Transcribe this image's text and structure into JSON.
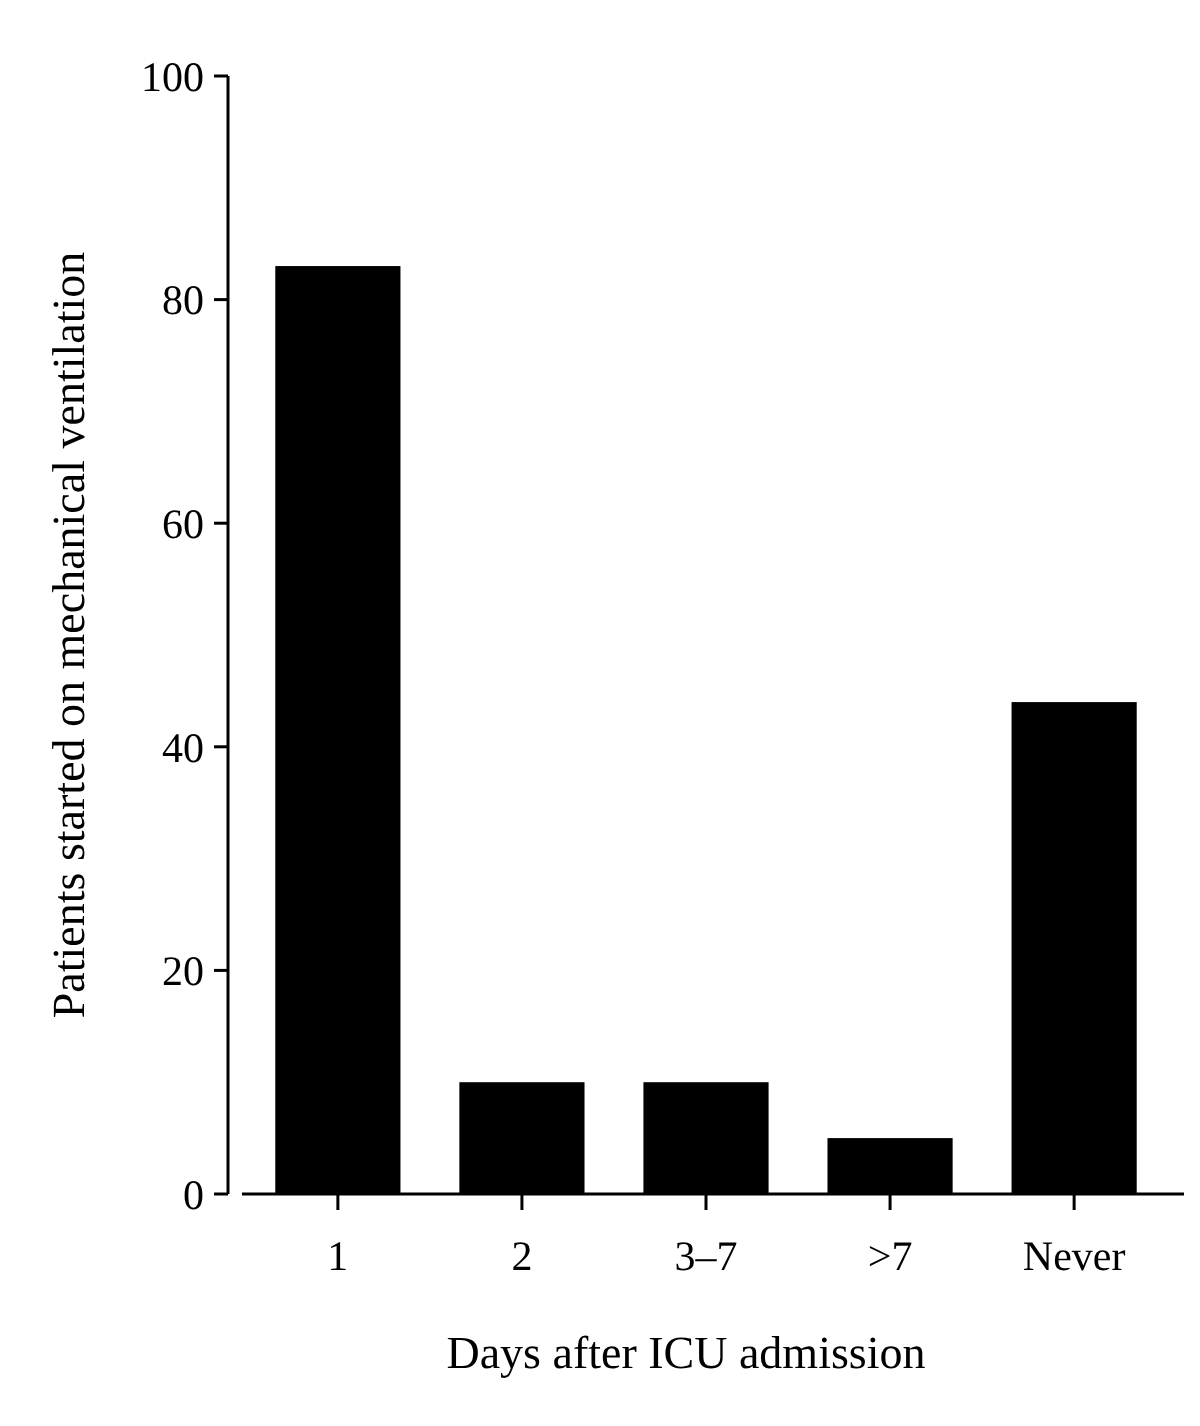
{
  "chart_data": {
    "type": "bar",
    "xlabel": "Days after ICU admission",
    "ylabel": "Patients started on mechanical ventilation",
    "categories": [
      "1",
      "2",
      "3–7",
      ">7",
      "Never"
    ],
    "values": [
      83,
      10,
      10,
      5,
      44
    ],
    "color": "#000000",
    "ylim": [
      0,
      100
    ],
    "yticks": [
      0,
      20,
      40,
      60,
      80,
      100
    ],
    "grid": false
  }
}
